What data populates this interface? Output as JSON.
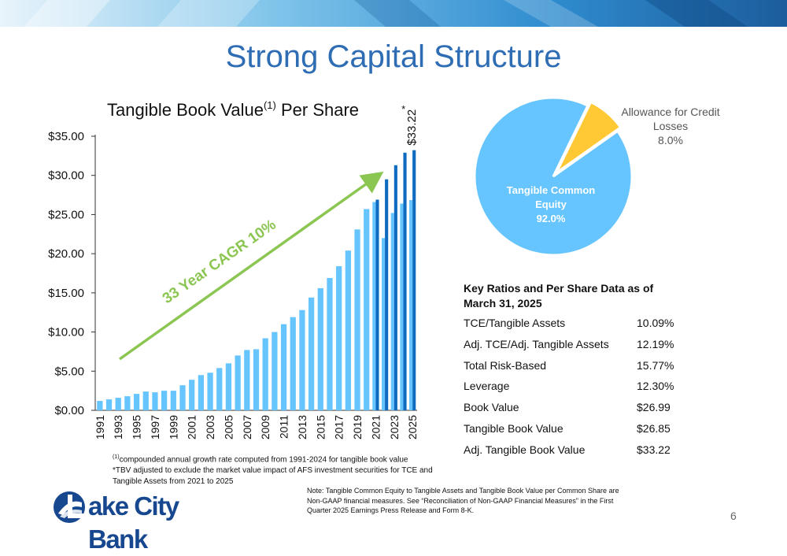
{
  "slide": {
    "title": "Strong Capital Structure",
    "page_number": "6"
  },
  "chart_data": [
    {
      "type": "bar",
      "title_main": "Tangible Book Value",
      "title_sup": "(1)",
      "title_rest": " Per Share",
      "y_tick_labels": [
        "$0.00",
        "$5.00",
        "$10.00",
        "$15.00",
        "$20.00",
        "$25.00",
        "$30.00",
        "$35.00"
      ],
      "ylim": [
        0,
        35
      ],
      "x_tick_labels": [
        "1991",
        "1993",
        "1995",
        "1997",
        "1999",
        "2001",
        "2003",
        "2005",
        "2007",
        "2009",
        "2011",
        "2013",
        "2015",
        "2017",
        "2019",
        "2021",
        "2023",
        "2025"
      ],
      "categories": [
        "1991",
        "1992",
        "1993",
        "1994",
        "1995",
        "1996",
        "1997",
        "1998",
        "1999",
        "2000",
        "2001",
        "2002",
        "2003",
        "2004",
        "2005",
        "2006",
        "2007",
        "2008",
        "2009",
        "2010",
        "2011",
        "2012",
        "2013",
        "2014",
        "2015",
        "2016",
        "2017",
        "2018",
        "2019",
        "2020",
        "2021",
        "2022",
        "2023",
        "2024",
        "2025"
      ],
      "series": [
        {
          "values": [
            1.2,
            1.4,
            1.6,
            1.8,
            2.1,
            2.4,
            2.3,
            2.5,
            2.5,
            3.2,
            3.9,
            4.5,
            4.8,
            5.4,
            6.0,
            7.0,
            7.7,
            7.8,
            9.2,
            10.0,
            11.0,
            11.9,
            12.8,
            14.4,
            15.6,
            16.9,
            18.4,
            20.4,
            23.1,
            25.7,
            26.6,
            22.0,
            25.2,
            26.4,
            26.85
          ],
          "color": "#66c5ff"
        },
        {
          "values": [
            null,
            null,
            null,
            null,
            null,
            null,
            null,
            null,
            null,
            null,
            null,
            null,
            null,
            null,
            null,
            null,
            null,
            null,
            null,
            null,
            null,
            null,
            null,
            null,
            null,
            null,
            null,
            null,
            null,
            null,
            26.9,
            29.5,
            31.3,
            32.9,
            33.22
          ],
          "color": "#0e6bbf"
        }
      ],
      "data_label": "$33.22",
      "data_label_note": "*",
      "annotation": "33 Year CAGR 10%",
      "annotation_color": "#8cc652",
      "grid": false
    },
    {
      "type": "pie",
      "slices": [
        {
          "label_line1": "Tangible Common",
          "label_line2": "Equity",
          "label_value": "92.0%",
          "value": 92.0,
          "color": "#66c5ff"
        },
        {
          "label_line1": "Allowance for Credit",
          "label_line2": "Losses",
          "label_value": "8.0%",
          "value": 8.0,
          "color": "#ffc935"
        }
      ]
    }
  ],
  "key_ratios": {
    "title": "Key Ratios and Per Share Data as of March 31, 2025",
    "rows": [
      {
        "label": "TCE/Tangible Assets",
        "value": "10.09%"
      },
      {
        "label": "Adj. TCE/Adj. Tangible Assets",
        "value": "12.19%"
      },
      {
        "label": "Total Risk-Based",
        "value": "15.77%"
      },
      {
        "label": "Leverage",
        "value": "12.30%"
      },
      {
        "label": "Book Value",
        "value": "$26.99"
      },
      {
        "label": "Tangible Book Value",
        "value": "$26.85"
      },
      {
        "label": "Adj. Tangible Book Value",
        "value": "$33.22"
      }
    ]
  },
  "footnotes": {
    "fn1_marker": "(1)",
    "fn1_text": "compounded annual growth rate computed from 1991-2024 for tangible book value",
    "fn2_text": "*TBV adjusted to exclude the market value impact of AFS investment securities for TCE and Tangible Assets from 2021 to 2025"
  },
  "note": "Note: Tangible Common Equity to Tangible Assets and Tangible Book Value per Common Share are Non-GAAP financial measures. See “Reconciliation of Non-GAAP Financial Measures” in the First Quarter 2025 Earnings Press Release and Form 8-K.",
  "logo": {
    "text": "ake City Bank",
    "brand_color": "#17478f"
  }
}
